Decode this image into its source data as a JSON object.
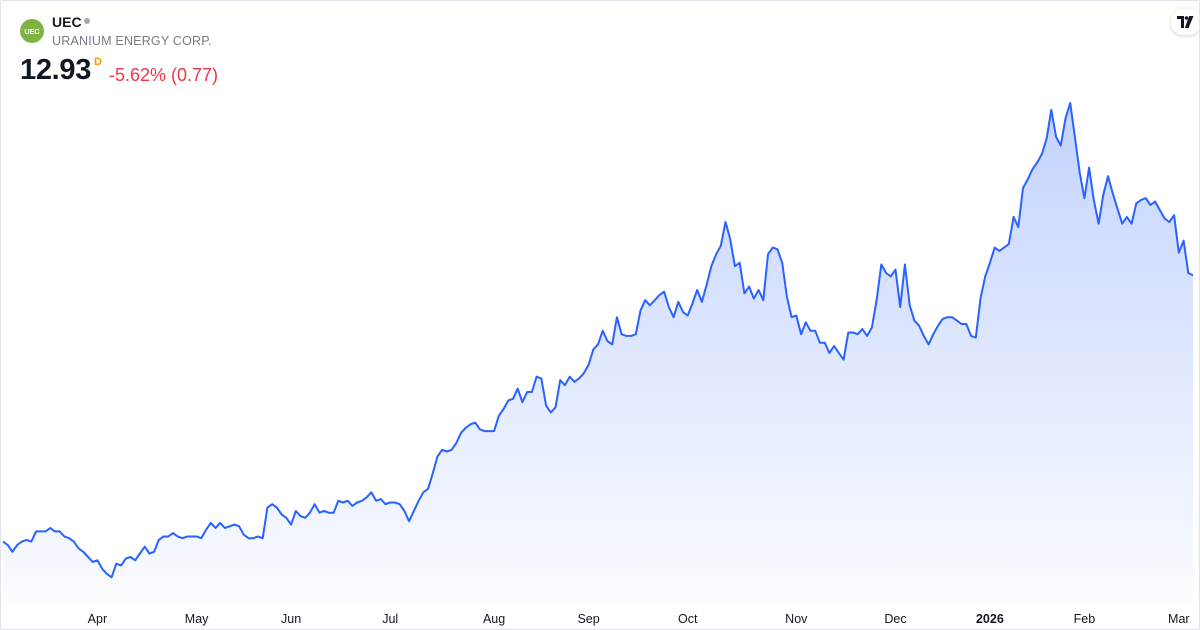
{
  "header": {
    "logo_text": "UEC",
    "ticker": "UEC",
    "company": "URANIUM ENERGY CORP.",
    "price": "12.93",
    "interval": "D",
    "change": "-5.62% (0.77)",
    "change_color": "#f23645",
    "brand_icon": "tradingview-logo-icon"
  },
  "chart_data": {
    "type": "area",
    "line_color": "#2962ff",
    "fill_color": "#2962ff",
    "x_tick_labels": [
      {
        "label": "Apr",
        "bold": false
      },
      {
        "label": "May",
        "bold": false
      },
      {
        "label": "Jun",
        "bold": false
      },
      {
        "label": "Jul",
        "bold": false
      },
      {
        "label": "Aug",
        "bold": false
      },
      {
        "label": "Sep",
        "bold": false
      },
      {
        "label": "Oct",
        "bold": false
      },
      {
        "label": "Nov",
        "bold": false
      },
      {
        "label": "Dec",
        "bold": false
      },
      {
        "label": "2026",
        "bold": true
      },
      {
        "label": "Feb",
        "bold": false
      },
      {
        "label": "Mar",
        "bold": false
      }
    ],
    "x_tick_index": [
      20,
      41,
      61,
      82,
      104,
      124,
      145,
      168,
      189,
      209,
      229,
      249
    ],
    "ylim": [
      4,
      18
    ],
    "values": [
      5.1,
      5.0,
      4.8,
      5.0,
      5.1,
      5.15,
      5.1,
      5.4,
      5.4,
      5.4,
      5.5,
      5.4,
      5.4,
      5.25,
      5.2,
      5.1,
      4.9,
      4.8,
      4.65,
      4.5,
      4.55,
      4.3,
      4.15,
      4.05,
      4.45,
      4.4,
      4.6,
      4.65,
      4.55,
      4.75,
      4.95,
      4.75,
      4.8,
      5.15,
      5.25,
      5.25,
      5.35,
      5.25,
      5.2,
      5.25,
      5.25,
      5.25,
      5.2,
      5.45,
      5.65,
      5.5,
      5.65,
      5.5,
      5.55,
      5.6,
      5.55,
      5.3,
      5.2,
      5.2,
      5.25,
      5.2,
      6.1,
      6.2,
      6.1,
      5.9,
      5.8,
      5.6,
      6.0,
      5.85,
      5.8,
      5.95,
      6.2,
      5.95,
      6.0,
      5.95,
      5.95,
      6.3,
      6.25,
      6.3,
      6.15,
      6.25,
      6.3,
      6.4,
      6.55,
      6.3,
      6.35,
      6.2,
      6.25,
      6.25,
      6.2,
      6.0,
      5.7,
      6.0,
      6.3,
      6.55,
      6.65,
      7.1,
      7.6,
      7.8,
      7.75,
      7.8,
      8.0,
      8.3,
      8.45,
      8.55,
      8.6,
      8.4,
      8.35,
      8.35,
      8.35,
      8.8,
      9.0,
      9.25,
      9.3,
      9.6,
      9.2,
      9.5,
      9.5,
      9.95,
      9.9,
      9.1,
      8.9,
      9.05,
      9.85,
      9.7,
      9.95,
      9.8,
      9.9,
      10.05,
      10.3,
      10.75,
      10.9,
      11.3,
      11.0,
      10.9,
      11.7,
      11.2,
      11.15,
      11.15,
      11.2,
      11.9,
      12.2,
      12.05,
      12.2,
      12.35,
      12.45,
      12.0,
      11.7,
      12.15,
      11.85,
      11.75,
      12.1,
      12.5,
      12.15,
      12.65,
      13.2,
      13.55,
      13.8,
      14.5,
      14.0,
      13.2,
      13.3,
      12.4,
      12.6,
      12.25,
      12.5,
      12.2,
      13.55,
      13.75,
      13.7,
      13.3,
      12.3,
      11.7,
      11.75,
      11.2,
      11.55,
      11.3,
      11.3,
      10.95,
      10.95,
      10.65,
      10.85,
      10.65,
      10.45,
      11.25,
      11.25,
      11.2,
      11.35,
      11.15,
      11.4,
      12.2,
      13.25,
      13.0,
      12.9,
      13.1,
      12.0,
      13.25,
      12.05,
      11.6,
      11.45,
      11.15,
      10.9,
      11.2,
      11.45,
      11.65,
      11.7,
      11.7,
      11.6,
      11.5,
      11.5,
      11.15,
      11.1,
      12.25,
      12.9,
      13.3,
      13.75,
      13.65,
      13.75,
      13.85,
      14.65,
      14.35,
      15.5,
      15.75,
      16.05,
      16.25,
      16.5,
      16.95,
      17.8,
      17.0,
      16.75,
      17.55,
      18.0,
      17.0,
      15.95,
      15.2,
      16.1,
      15.15,
      14.45,
      15.3,
      15.85,
      15.35,
      14.9,
      14.45,
      14.65,
      14.45,
      15.05,
      15.15,
      15.2,
      15.0,
      15.1,
      14.85,
      14.6,
      14.5,
      14.7,
      13.6,
      13.95,
      13.0,
      12.93
    ]
  }
}
